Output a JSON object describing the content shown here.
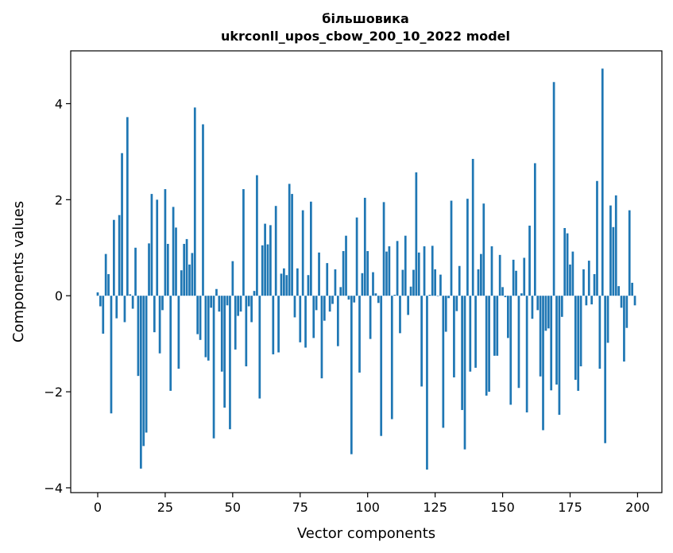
{
  "chart_data": {
    "type": "bar",
    "title_line1": "більшовика",
    "title_line2": "ukrconll_upos_cbow_200_10_2022 model",
    "xlabel": "Vector components",
    "ylabel": "Components values",
    "xlim": [
      -10,
      209
    ],
    "ylim": [
      -4.1,
      5.1
    ],
    "xticks": [
      0,
      25,
      50,
      75,
      100,
      125,
      150,
      175,
      200
    ],
    "yticks": [
      -4,
      -2,
      0,
      2,
      4
    ],
    "grid": false,
    "bar_color": "#1f77b4",
    "x": [
      0,
      1,
      2,
      3,
      4,
      5,
      6,
      7,
      8,
      9,
      10,
      11,
      12,
      13,
      14,
      15,
      16,
      17,
      18,
      19,
      20,
      21,
      22,
      23,
      24,
      25,
      26,
      27,
      28,
      29,
      30,
      31,
      32,
      33,
      34,
      35,
      36,
      37,
      38,
      39,
      40,
      41,
      42,
      43,
      44,
      45,
      46,
      47,
      48,
      49,
      50,
      51,
      52,
      53,
      54,
      55,
      56,
      57,
      58,
      59,
      60,
      61,
      62,
      63,
      64,
      65,
      66,
      67,
      68,
      69,
      70,
      71,
      72,
      73,
      74,
      75,
      76,
      77,
      78,
      79,
      80,
      81,
      82,
      83,
      84,
      85,
      86,
      87,
      88,
      89,
      90,
      91,
      92,
      93,
      94,
      95,
      96,
      97,
      98,
      99,
      100,
      101,
      102,
      103,
      104,
      105,
      106,
      107,
      108,
      109,
      110,
      111,
      112,
      113,
      114,
      115,
      116,
      117,
      118,
      119,
      120,
      121,
      122,
      123,
      124,
      125,
      126,
      127,
      128,
      129,
      130,
      131,
      132,
      133,
      134,
      135,
      136,
      137,
      138,
      139,
      140,
      141,
      142,
      143,
      144,
      145,
      146,
      147,
      148,
      149,
      150,
      151,
      152,
      153,
      154,
      155,
      156,
      157,
      158,
      159,
      160,
      161,
      162,
      163,
      164,
      165,
      166,
      167,
      168,
      169,
      170,
      171,
      172,
      173,
      174,
      175,
      176,
      177,
      178,
      179,
      180,
      181,
      182,
      183,
      184,
      185,
      186,
      187,
      188,
      189,
      190,
      191,
      192,
      193,
      194,
      195,
      196,
      197,
      198,
      199
    ],
    "values": [
      0.07,
      -0.22,
      -0.79,
      0.87,
      0.45,
      -2.45,
      1.58,
      -0.47,
      1.68,
      2.97,
      -0.55,
      3.72,
      0.03,
      -0.27,
      1.0,
      -1.67,
      -3.6,
      -3.13,
      -2.85,
      1.09,
      2.12,
      -0.76,
      2.0,
      -1.2,
      -0.3,
      2.22,
      1.08,
      -1.98,
      1.85,
      1.42,
      -1.52,
      0.53,
      1.08,
      1.18,
      0.65,
      0.89,
      3.92,
      -0.8,
      -0.92,
      3.57,
      -1.28,
      -1.35,
      -0.25,
      -2.97,
      0.14,
      -0.33,
      -1.58,
      -2.33,
      -0.2,
      -2.78,
      0.72,
      -1.12,
      -0.42,
      -0.33,
      2.22,
      -1.47,
      -0.22,
      -0.55,
      0.1,
      2.51,
      -2.14,
      1.05,
      1.5,
      1.07,
      1.47,
      -1.22,
      1.87,
      -1.18,
      0.46,
      0.57,
      0.43,
      2.33,
      2.12,
      -0.45,
      0.57,
      -0.97,
      1.78,
      -1.08,
      0.43,
      1.96,
      -0.88,
      -0.3,
      0.9,
      -1.72,
      -0.52,
      0.68,
      -0.33,
      -0.17,
      0.55,
      -1.05,
      0.18,
      0.93,
      1.25,
      -0.08,
      -3.3,
      -0.14,
      1.63,
      -1.6,
      0.47,
      2.04,
      0.93,
      -0.9,
      0.49,
      0.05,
      -0.15,
      -2.92,
      1.95,
      0.92,
      1.03,
      -2.57,
      0.02,
      1.14,
      -0.78,
      0.54,
      1.25,
      -0.4,
      0.19,
      0.54,
      2.57,
      0.9,
      -1.89,
      1.03,
      -3.62,
      0.02,
      1.04,
      0.55,
      0.0,
      0.44,
      -2.75,
      -0.75,
      -0.05,
      1.98,
      -1.7,
      -0.32,
      0.62,
      -2.38,
      -3.2,
      2.02,
      -1.58,
      2.85,
      -1.5,
      0.55,
      0.87,
      1.92,
      -2.08,
      -2.0,
      1.03,
      -1.25,
      -1.25,
      0.85,
      0.18,
      -0.03,
      -0.88,
      -2.27,
      0.75,
      0.52,
      -1.92,
      0.05,
      0.79,
      -2.43,
      1.46,
      -0.48,
      2.76,
      -0.3,
      -1.68,
      -2.8,
      -0.73,
      -0.68,
      -1.97,
      4.45,
      -1.85,
      -2.48,
      -0.44,
      1.41,
      1.3,
      0.65,
      0.92,
      -1.75,
      -1.98,
      -1.47,
      0.55,
      -0.2,
      0.73,
      -0.18,
      0.45,
      2.39,
      -1.52,
      4.73,
      -3.07,
      -0.98,
      1.88,
      1.43,
      2.09,
      0.2,
      -0.25,
      -1.37,
      -0.67,
      1.78,
      0.27,
      -0.2
    ]
  }
}
